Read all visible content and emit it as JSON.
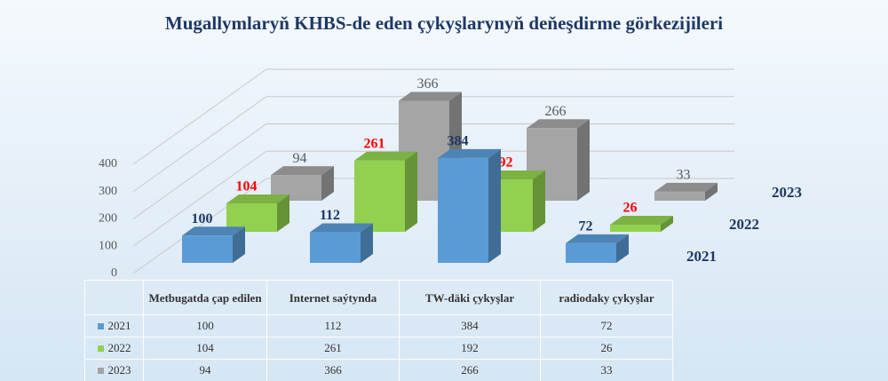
{
  "chart_data": {
    "type": "bar3d",
    "title": "Mugallymlaryň KHBS-de eden çykyşlarynyň deňeşdirme görkezijileri",
    "categories": [
      "Metbugatda çap edilen",
      "Internet saýtynda",
      "TW-däki çykyşlar",
      "radiodaky çykyşlar"
    ],
    "series": [
      {
        "name": "2021",
        "color": "#5b9bd5",
        "label_color": "#1f3864",
        "values": [
          100,
          112,
          384,
          72
        ]
      },
      {
        "name": "2022",
        "color": "#92d050",
        "label_color": "#ff0000",
        "values": [
          104,
          261,
          192,
          26
        ]
      },
      {
        "name": "2023",
        "color": "#a5a5a5",
        "label_color": "#595959",
        "values": [
          94,
          366,
          266,
          33
        ]
      }
    ],
    "ylim": [
      0,
      400
    ],
    "yticks": [
      0,
      100,
      200,
      300,
      400
    ],
    "grid": true
  }
}
